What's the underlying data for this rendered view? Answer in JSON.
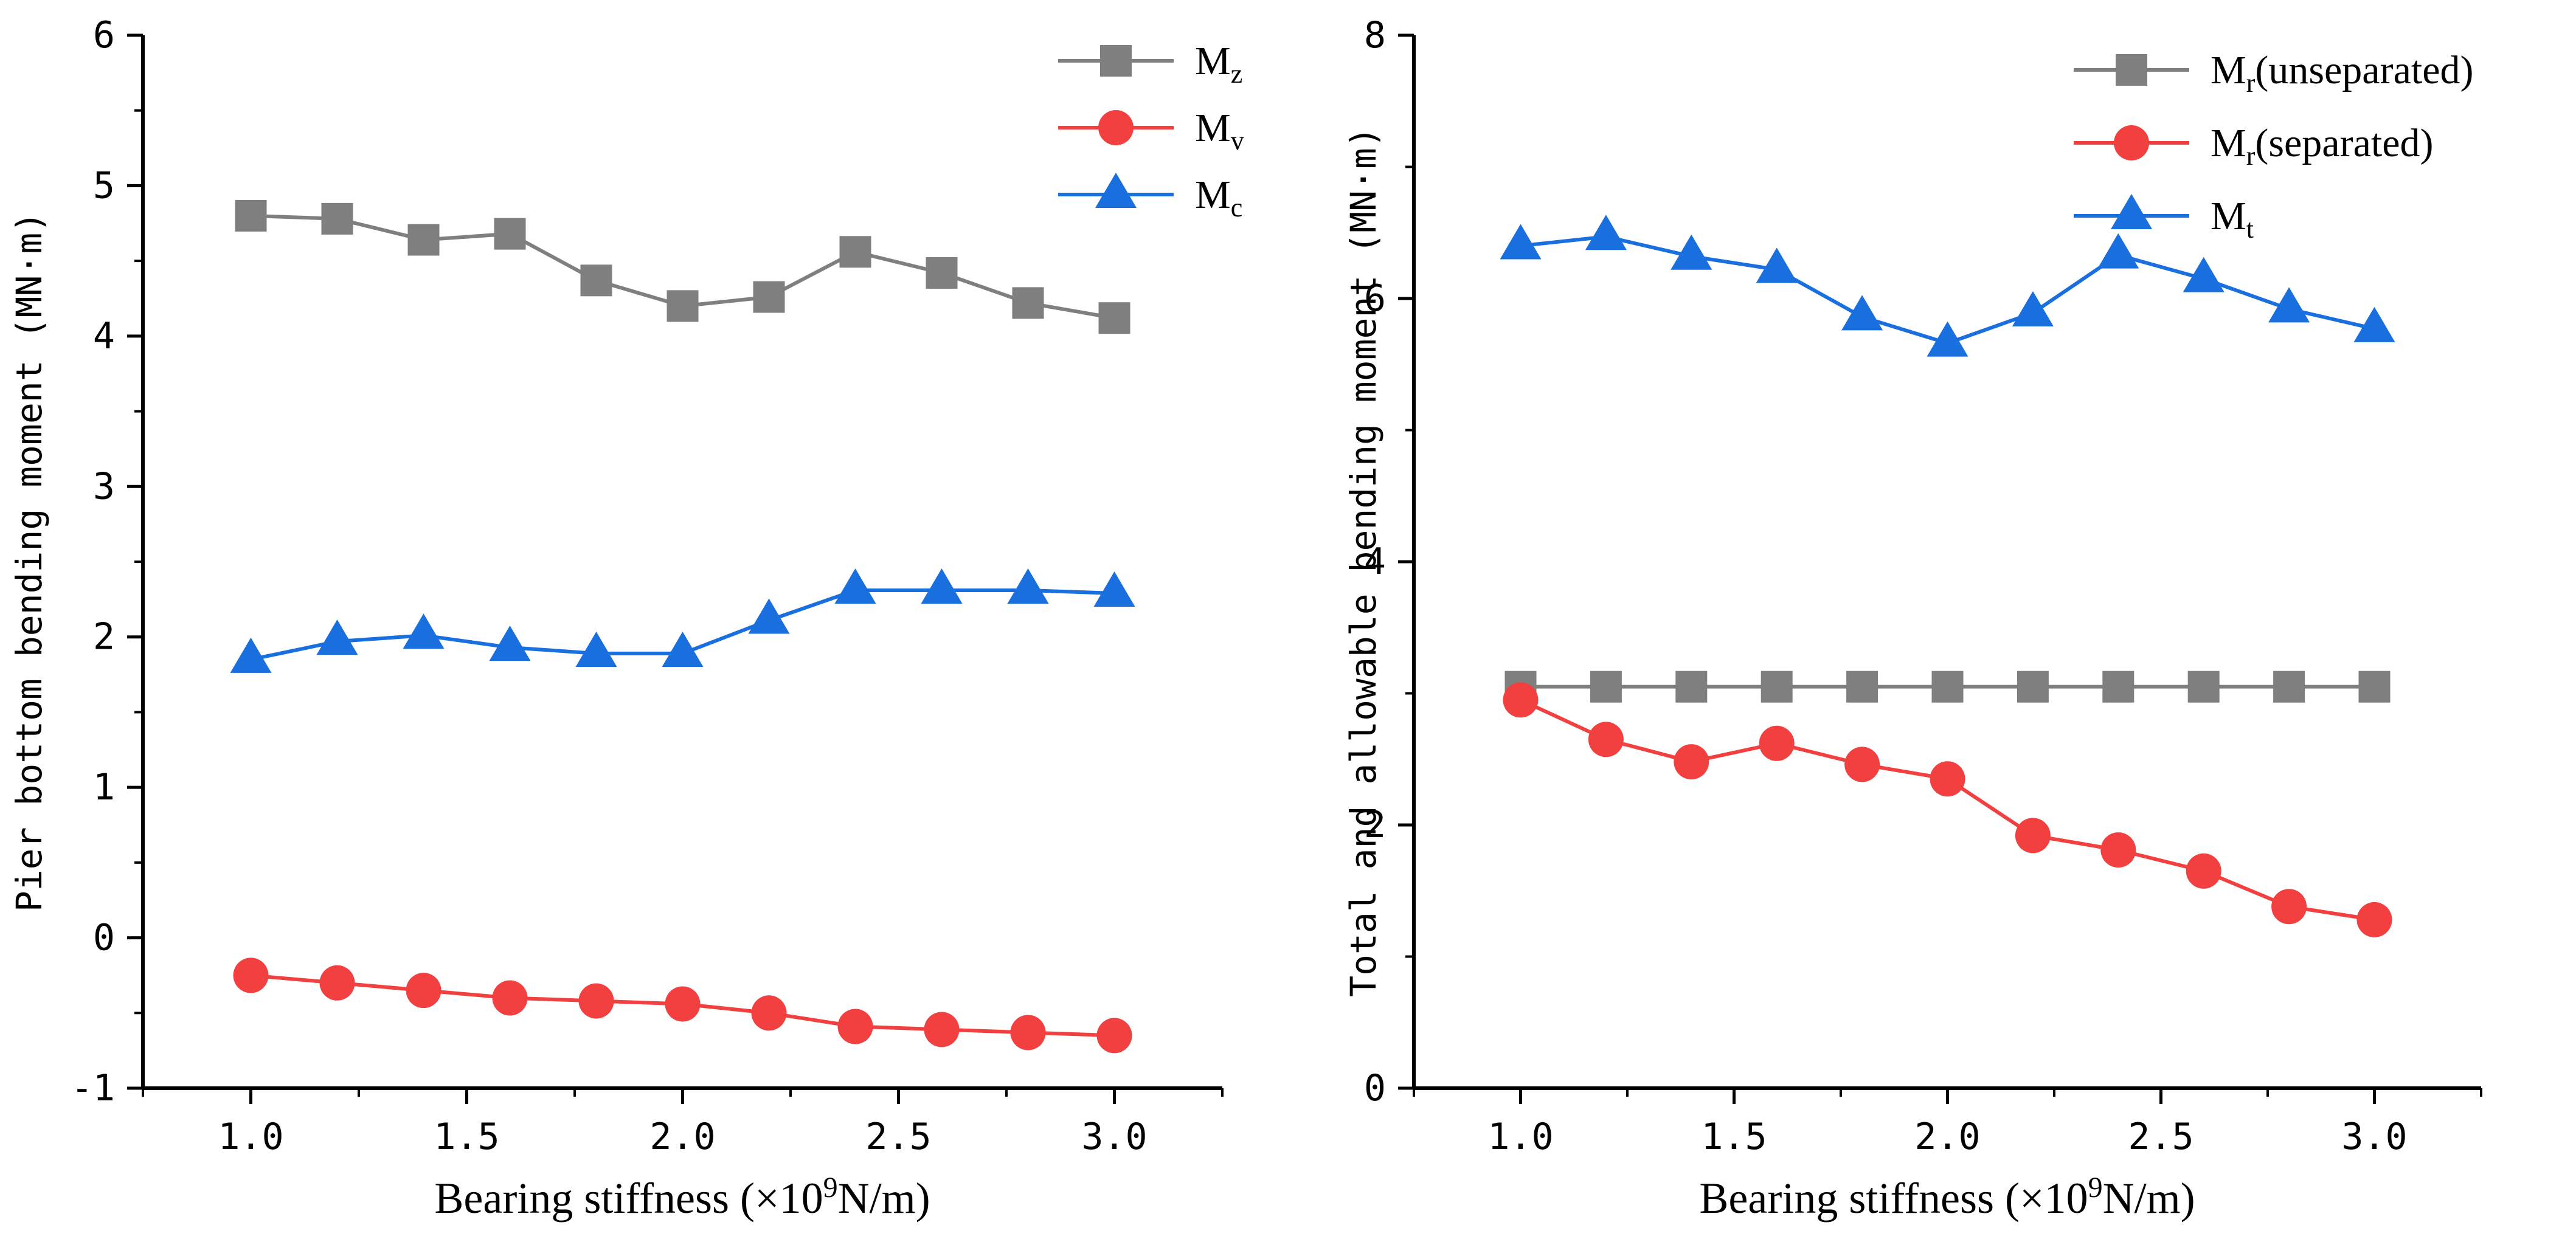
{
  "chart_data": [
    {
      "type": "line",
      "x": [
        1.0,
        1.2,
        1.4,
        1.6,
        1.8,
        2.0,
        2.2,
        2.4,
        2.6,
        2.8,
        3.0
      ],
      "xlabel_prefix": "Bearing stiffness (×10",
      "xlabel_sup": "9",
      "xlabel_suffix": "N/m)",
      "ylabel": "Pier bottom bending moment (MN·m)",
      "xlim": [
        0.75,
        3.25
      ],
      "ylim": [
        -1,
        6
      ],
      "x_ticks": [
        1.0,
        1.5,
        2.0,
        2.5,
        3.0
      ],
      "x_tick_labels": [
        "1.0",
        "1.5",
        "2.0",
        "2.5",
        "3.0"
      ],
      "y_ticks": [
        -1,
        0,
        1,
        2,
        3,
        4,
        5,
        6
      ],
      "y_tick_labels": [
        "-1",
        "0",
        "1",
        "2",
        "3",
        "4",
        "5",
        "6"
      ],
      "grid": false,
      "legend_position": "top-right",
      "series": [
        {
          "name": "Mz",
          "base": "M",
          "sub": "z",
          "marker": "square",
          "color": "#7f7f7f",
          "values": [
            4.8,
            4.78,
            4.64,
            4.68,
            4.37,
            4.2,
            4.26,
            4.56,
            4.42,
            4.22,
            4.12
          ]
        },
        {
          "name": "Mv",
          "base": "M",
          "sub": "v",
          "marker": "circle",
          "color": "#f24040",
          "values": [
            -0.25,
            -0.3,
            -0.35,
            -0.4,
            -0.42,
            -0.44,
            -0.5,
            -0.59,
            -0.61,
            -0.63,
            -0.65
          ]
        },
        {
          "name": "Mc",
          "base": "M",
          "sub": "c",
          "marker": "triangle",
          "color": "#1a6fdf",
          "values": [
            1.85,
            1.97,
            2.01,
            1.93,
            1.89,
            1.89,
            2.11,
            2.31,
            2.31,
            2.31,
            2.29
          ]
        }
      ]
    },
    {
      "type": "line",
      "x": [
        1.0,
        1.2,
        1.4,
        1.6,
        1.8,
        2.0,
        2.2,
        2.4,
        2.6,
        2.8,
        3.0
      ],
      "xlabel_prefix": "Bearing stiffness (×10",
      "xlabel_sup": "9",
      "xlabel_suffix": "N/m)",
      "ylabel": "Total and allowable bending moment (MN·m)",
      "xlim": [
        0.75,
        3.25
      ],
      "ylim": [
        0,
        8
      ],
      "x_ticks": [
        1.0,
        1.5,
        2.0,
        2.5,
        3.0
      ],
      "x_tick_labels": [
        "1.0",
        "1.5",
        "2.0",
        "2.5",
        "3.0"
      ],
      "y_ticks": [
        0,
        2,
        4,
        6,
        8
      ],
      "y_tick_labels": [
        "0",
        "2",
        "4",
        "6",
        "8"
      ],
      "grid": false,
      "legend_position": "top-right",
      "series": [
        {
          "name": "Mr(unseparated)",
          "base": "M",
          "sub": "r",
          "suffix": "(unseparated)",
          "marker": "square",
          "color": "#7f7f7f",
          "values": [
            3.05,
            3.05,
            3.05,
            3.05,
            3.05,
            3.05,
            3.05,
            3.05,
            3.05,
            3.05,
            3.05
          ]
        },
        {
          "name": "Mr(separated)",
          "base": "M",
          "sub": "r",
          "suffix": "(separated)",
          "marker": "circle",
          "color": "#f24040",
          "values": [
            2.95,
            2.65,
            2.48,
            2.62,
            2.46,
            2.35,
            1.92,
            1.81,
            1.65,
            1.38,
            1.28
          ]
        },
        {
          "name": "Mt",
          "base": "M",
          "sub": "t",
          "marker": "triangle",
          "color": "#1a6fdf",
          "values": [
            6.4,
            6.47,
            6.32,
            6.22,
            5.86,
            5.66,
            5.89,
            6.33,
            6.15,
            5.92,
            5.77
          ]
        }
      ]
    }
  ]
}
